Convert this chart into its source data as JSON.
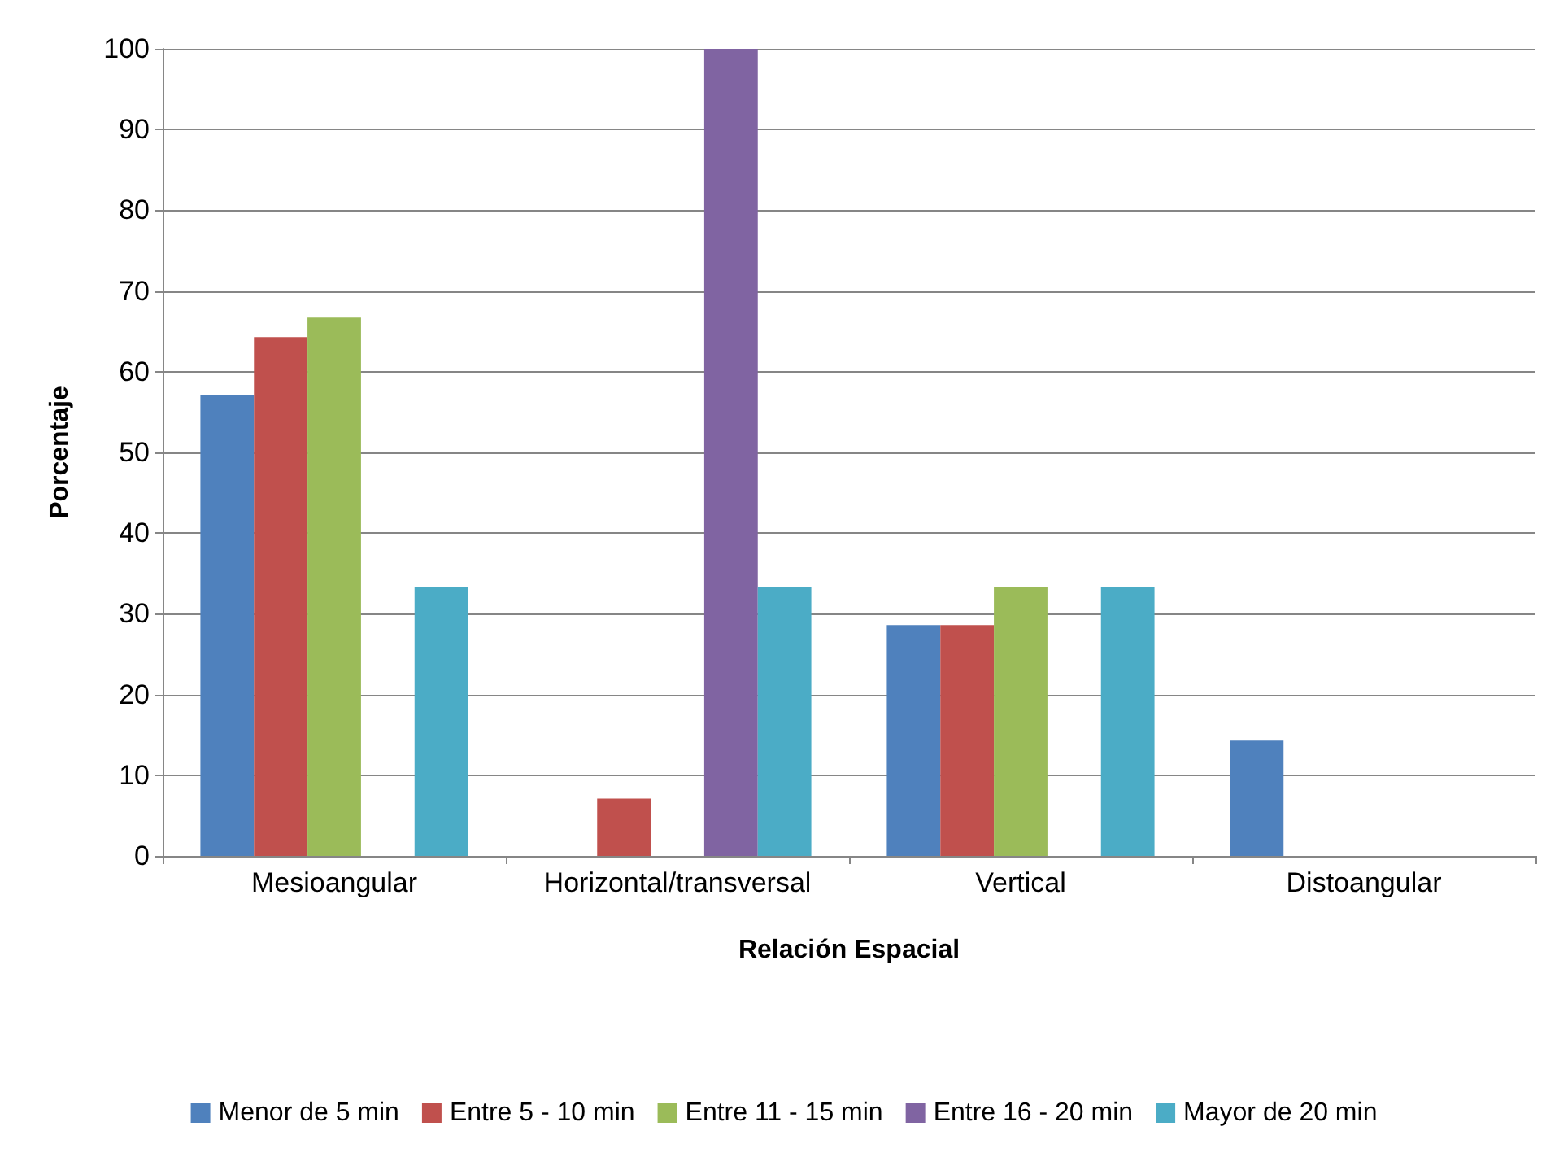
{
  "chart_data": {
    "type": "bar",
    "xlabel": "Relación Espacial",
    "ylabel": "Porcentaje",
    "categories": [
      "Mesioangular",
      "Horizontal/transversal",
      "Vertical",
      "Distoangular"
    ],
    "series": [
      {
        "name": "Menor de 5 min",
        "color": "#4f81bd",
        "values": [
          57.1,
          null,
          28.6,
          14.3
        ]
      },
      {
        "name": "Entre 5 - 10 min",
        "color": "#c0504d",
        "values": [
          64.3,
          7.1,
          28.6,
          null
        ]
      },
      {
        "name": "Entre 11 - 15 min",
        "color": "#9bbb59",
        "values": [
          66.7,
          null,
          33.3,
          null
        ]
      },
      {
        "name": "Entre 16 - 20 min",
        "color": "#8064a2",
        "values": [
          null,
          100,
          null,
          null
        ]
      },
      {
        "name": "Mayor de 20 min",
        "color": "#4bacc6",
        "values": [
          33.3,
          33.3,
          33.3,
          null
        ]
      }
    ],
    "ylim": [
      0,
      100
    ],
    "yticks": [
      0,
      10,
      20,
      30,
      40,
      50,
      60,
      70,
      80,
      90,
      100
    ],
    "grid": "y",
    "legend": "bottom"
  }
}
